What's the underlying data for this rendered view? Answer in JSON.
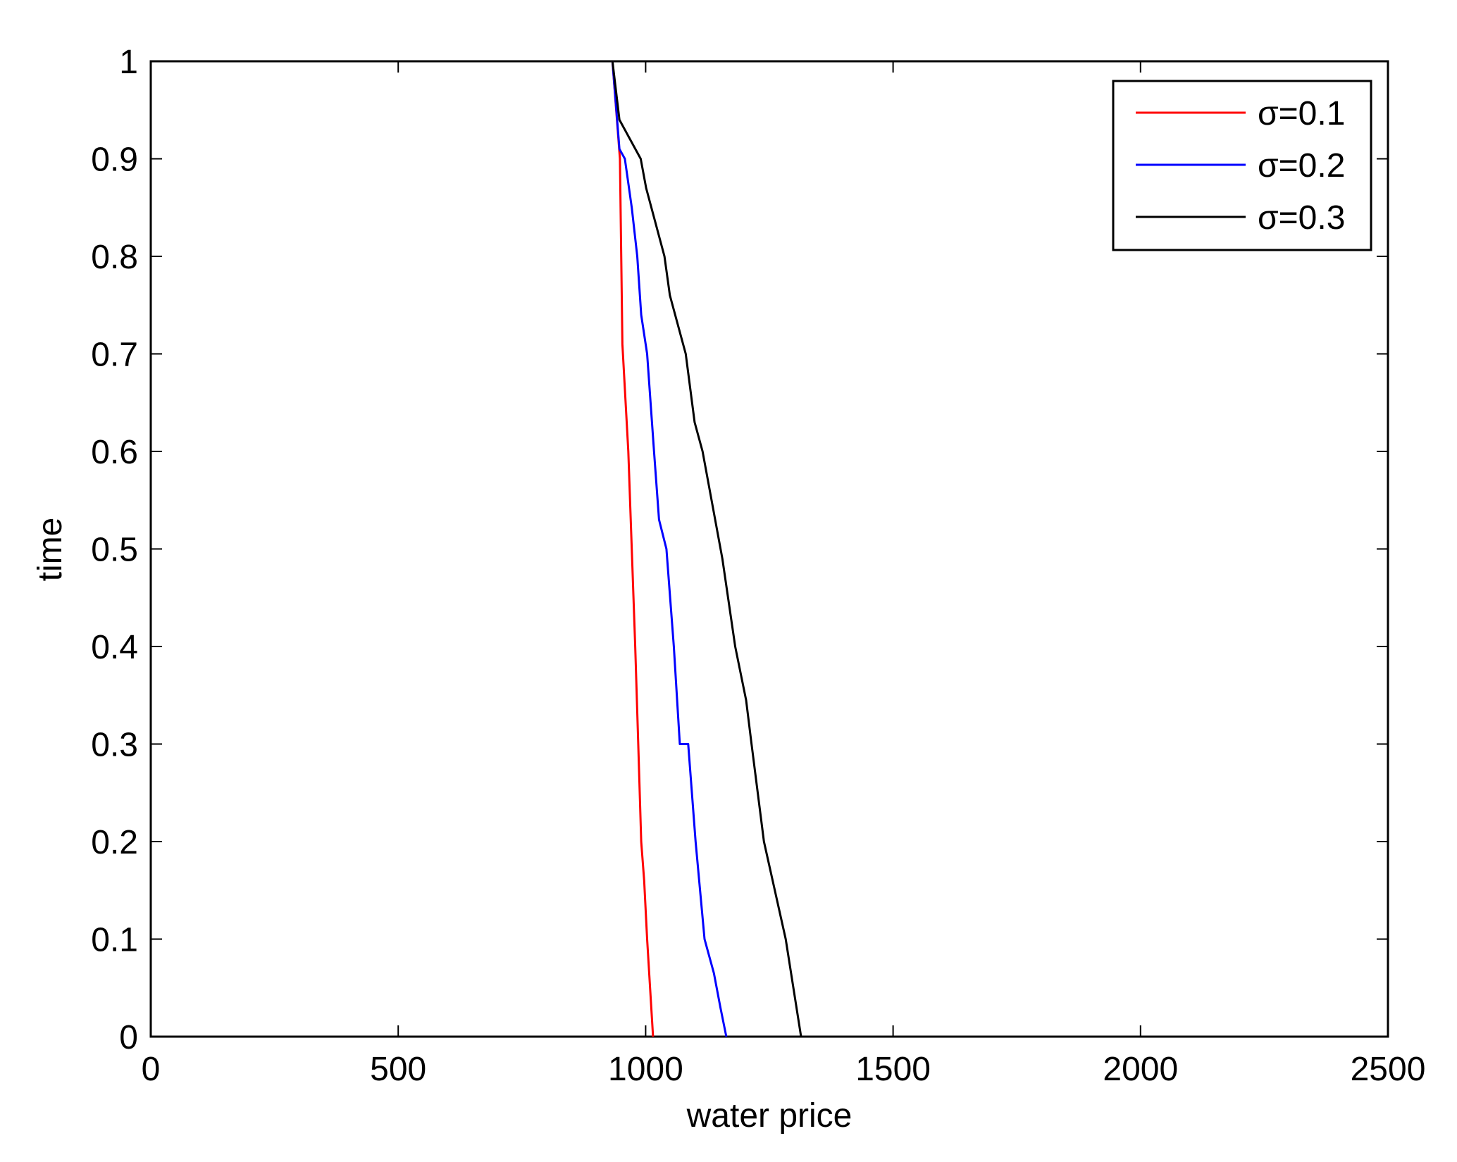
{
  "chart_data": {
    "type": "line",
    "xlabel": "water price",
    "ylabel": "time",
    "xlim": [
      0,
      2500
    ],
    "ylim": [
      0,
      1
    ],
    "xticks": [
      0,
      500,
      1000,
      1500,
      2000,
      2500
    ],
    "yticks": [
      0,
      0.1,
      0.2,
      0.3,
      0.4,
      0.5,
      0.6,
      0.7,
      0.8,
      0.9,
      1
    ],
    "xtick_labels": [
      "0",
      "500",
      "1000",
      "1500",
      "2000",
      "2500"
    ],
    "ytick_labels": [
      "0",
      "0.1",
      "0.2",
      "0.3",
      "0.4",
      "0.5",
      "0.6",
      "0.7",
      "0.8",
      "0.9",
      "1"
    ],
    "grid": false,
    "legend_position": "top-right",
    "series": [
      {
        "name": "σ=0.1",
        "color": "#ff0000",
        "x": [
          933,
          948,
          953,
          965,
          972,
          979,
          985,
          991,
          997,
          1003,
          1009,
          1015
        ],
        "y": [
          1,
          0.9,
          0.71,
          0.6,
          0.5,
          0.4,
          0.3,
          0.2,
          0.16,
          0.1,
          0.05,
          0
        ]
      },
      {
        "name": "σ=0.2",
        "color": "#0000ff",
        "x": [
          933,
          947,
          958,
          972,
          983,
          991,
          1003,
          1017,
          1027,
          1042,
          1057,
          1069,
          1086,
          1101,
          1119,
          1138,
          1151,
          1163
        ],
        "y": [
          1,
          0.91,
          0.9,
          0.85,
          0.8,
          0.74,
          0.7,
          0.6,
          0.53,
          0.5,
          0.4,
          0.3,
          0.3,
          0.2,
          0.1,
          0.065,
          0.03,
          0
        ]
      },
      {
        "name": "σ=0.3",
        "color": "#000000",
        "x": [
          933,
          947,
          990,
          1001,
          1038,
          1049,
          1081,
          1099,
          1115,
          1155,
          1181,
          1203,
          1214,
          1239,
          1283,
          1314
        ],
        "y": [
          1,
          0.94,
          0.9,
          0.87,
          0.8,
          0.76,
          0.7,
          0.63,
          0.6,
          0.49,
          0.4,
          0.345,
          0.3,
          0.2,
          0.1,
          0
        ]
      }
    ]
  }
}
